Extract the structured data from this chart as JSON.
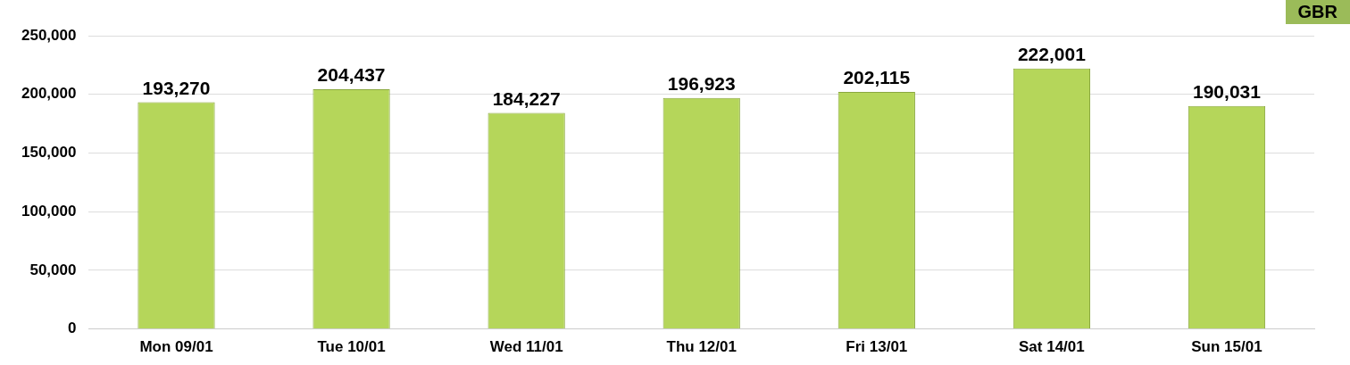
{
  "chart_data": {
    "type": "bar",
    "categories": [
      "Mon 09/01",
      "Tue 10/01",
      "Wed 11/01",
      "Thu 12/01",
      "Fri 13/01",
      "Sat 14/01",
      "Sun 15/01"
    ],
    "values": [
      193270,
      204437,
      184227,
      196923,
      202115,
      222001,
      190031
    ],
    "color": "#b5d65a",
    "ylim": [
      0,
      250000
    ],
    "yticks": [
      {
        "value": 0,
        "label": "0"
      },
      {
        "value": 50000,
        "label": "50,000"
      },
      {
        "value": 100000,
        "label": "100,000"
      },
      {
        "value": 150000,
        "label": "150,000"
      },
      {
        "value": 200000,
        "label": "200,000"
      },
      {
        "value": 250000,
        "label": "250,000"
      }
    ],
    "value_labels": [
      "193,270",
      "204,437",
      "184,227",
      "196,923",
      "202,115",
      "222,001",
      "190,031"
    ],
    "grid": "y",
    "legend": false,
    "annotations": [
      "GBR"
    ]
  }
}
